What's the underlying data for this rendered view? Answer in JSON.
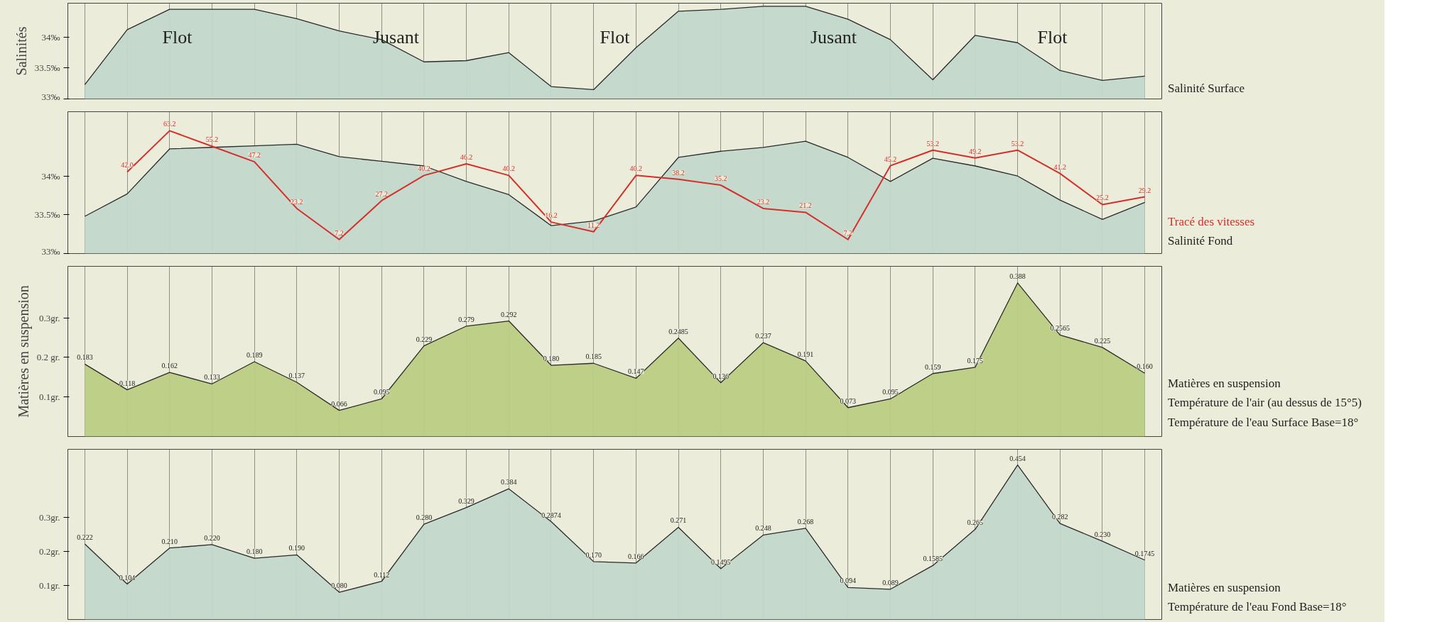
{
  "chart_data": [
    {
      "type": "area",
      "ylabel": "Salinités",
      "y2label": "Salinité Surface",
      "categories": [
        null,
        null,
        null,
        null,
        null,
        null,
        null,
        null,
        null,
        null,
        null,
        null,
        null,
        null,
        null,
        null,
        null,
        null,
        null,
        null,
        null,
        null,
        null,
        null,
        null,
        null
      ],
      "ylim": [
        33,
        34.55
      ],
      "yticks": [
        {
          "value": 33,
          "label": "33‰"
        },
        {
          "value": 33.5,
          "label": "33.5‰"
        },
        {
          "value": 34,
          "label": "34‰"
        }
      ],
      "grid": "x",
      "tick_labels": "y",
      "series": [
        {
          "color": "#c3d9cc",
          "values": [
            33.23,
            34.12,
            34.45,
            34.45,
            34.45,
            34.3,
            34.1,
            33.96,
            33.6,
            33.62,
            33.75,
            33.2,
            33.15,
            33.83,
            34.42,
            34.45,
            34.5,
            34.5,
            34.29,
            33.96,
            33.31,
            34.03,
            33.91,
            33.46,
            33.3,
            33.37
          ]
        }
      ],
      "annotations": [
        "Flot",
        "Jusant",
        "Flot",
        "Jusant",
        "Flot"
      ]
    },
    {
      "type": "area",
      "y2label": "Salinité Fond",
      "categories": [
        null,
        null,
        null,
        null,
        null,
        null,
        null,
        null,
        null,
        null,
        null,
        null,
        null,
        null,
        null,
        null,
        null,
        null,
        null,
        null,
        null,
        null,
        null,
        null,
        null,
        null
      ],
      "ylim": [
        33,
        34.83
      ],
      "yticks": [
        {
          "value": 33,
          "label": "33‰"
        },
        {
          "value": 33.5,
          "label": "33.5‰"
        },
        {
          "value": 34,
          "label": "34‰"
        }
      ],
      "y2lim": [
        0,
        73
      ],
      "grid": "x",
      "tick_labels": "y",
      "series": [
        {
          "color": "#c3d9cc",
          "values": [
            33.48,
            33.77,
            34.35,
            34.37,
            34.39,
            34.41,
            34.25,
            34.19,
            34.13,
            33.93,
            33.76,
            33.36,
            33.42,
            33.6,
            34.24,
            34.32,
            34.37,
            34.45,
            34.24,
            33.93,
            34.23,
            34.13,
            34.0,
            33.69,
            33.44,
            33.66
          ]
        },
        {
          "type": "line",
          "name": "Tracé des vitesses",
          "axis": "y2",
          "color": "#d42f2a",
          "values": [
            null,
            42.0,
            63.2,
            55.2,
            47.2,
            23.2,
            7.2,
            27.2,
            40.2,
            46.2,
            40.2,
            16.2,
            11.2,
            40.2,
            38.2,
            35.2,
            23.2,
            21.2,
            7.2,
            45.2,
            53.2,
            49.2,
            53.2,
            41.2,
            25.2,
            29.2
          ],
          "value_labels": [
            null,
            "42.0",
            "63.2",
            "55.2",
            "47.2",
            "23.2",
            "7.2",
            "27.2",
            "40.2",
            "46.2",
            "40.2",
            "16.2",
            "11.2",
            "40.2",
            "38.2",
            "35.2",
            "23.2",
            "21.2",
            "7.2",
            "45.2",
            "53.2",
            "49.2",
            "53.2",
            "41.2",
            "25.2",
            "29.2"
          ]
        }
      ]
    },
    {
      "type": "area",
      "ylabel": "Matières en suspension",
      "y2label": "Matières en suspension",
      "categories": [
        null,
        null,
        null,
        null,
        null,
        null,
        null,
        null,
        null,
        null,
        null,
        null,
        null,
        null,
        null,
        null,
        null,
        null,
        null,
        null,
        null,
        null,
        null,
        null,
        null,
        null
      ],
      "ylim": [
        0,
        0.43
      ],
      "yticks": [
        {
          "value": 0.1,
          "label": "0.1gr."
        },
        {
          "value": 0.2,
          "label": "0.2 gr."
        },
        {
          "value": 0.3,
          "label": "0.3gr."
        }
      ],
      "grid": "x",
      "tick_labels": "y",
      "series": [
        {
          "color": "#bccd84",
          "values": [
            0.183,
            0.118,
            0.162,
            0.133,
            0.189,
            0.137,
            0.066,
            0.095,
            0.229,
            0.279,
            0.292,
            0.18,
            0.185,
            0.147,
            0.2485,
            0.136,
            0.237,
            0.191,
            0.073,
            0.095,
            0.159,
            0.175,
            0.388,
            0.2565,
            0.225,
            0.16
          ],
          "value_labels": [
            "0.183",
            "0.118",
            "0.162",
            "0.133",
            "0.189",
            "0.137",
            "0.066",
            "0.095",
            "0.229",
            "0.279",
            "0.292",
            "0.180",
            "0.185",
            "0.147",
            "0.2485",
            "0.136",
            "0.237",
            "0.191",
            "0.073",
            "0.095",
            "0.159",
            "0.175",
            "0.388",
            "0.2565",
            "0.225",
            "0.160"
          ]
        }
      ],
      "annotations": [
        "Température de l'air (au dessus de 15°5)",
        "Température de l'eau Surface Base=18°"
      ]
    },
    {
      "type": "area",
      "y2label": "Matières en suspension",
      "categories": [
        null,
        null,
        null,
        null,
        null,
        null,
        null,
        null,
        null,
        null,
        null,
        null,
        null,
        null,
        null,
        null,
        null,
        null,
        null,
        null,
        null,
        null,
        null,
        null,
        null,
        null
      ],
      "ylim": [
        0,
        0.5
      ],
      "yticks": [
        {
          "value": 0.1,
          "label": "0.1gr."
        },
        {
          "value": 0.2,
          "label": "0.2gr."
        },
        {
          "value": 0.3,
          "label": "0.3gr."
        }
      ],
      "grid": "x",
      "tick_labels": "y",
      "series": [
        {
          "color": "#c3d9cc",
          "values": [
            0.222,
            0.104,
            0.21,
            0.22,
            0.18,
            0.19,
            0.08,
            0.112,
            0.28,
            0.329,
            0.384,
            0.2874,
            0.17,
            0.166,
            0.271,
            0.1495,
            0.248,
            0.268,
            0.094,
            0.089,
            0.1585,
            0.265,
            0.454,
            0.282,
            0.23,
            0.1745
          ],
          "value_labels": [
            "0.222",
            "0.104",
            "0.210",
            "0.220",
            "0.180",
            "0.190",
            "0.080",
            "0.112",
            "0.280",
            "0.329",
            "0.384",
            "0.2874",
            "0.170",
            "0.166",
            "0.271",
            "0.1495",
            "0.248",
            "0.268",
            "0.094",
            "0.089",
            "0.1585",
            "0.265",
            "0.454",
            "0.282",
            "0.230",
            "0.1745"
          ]
        }
      ],
      "annotations": [
        "Température de l'eau Fond Base=18°"
      ]
    }
  ]
}
